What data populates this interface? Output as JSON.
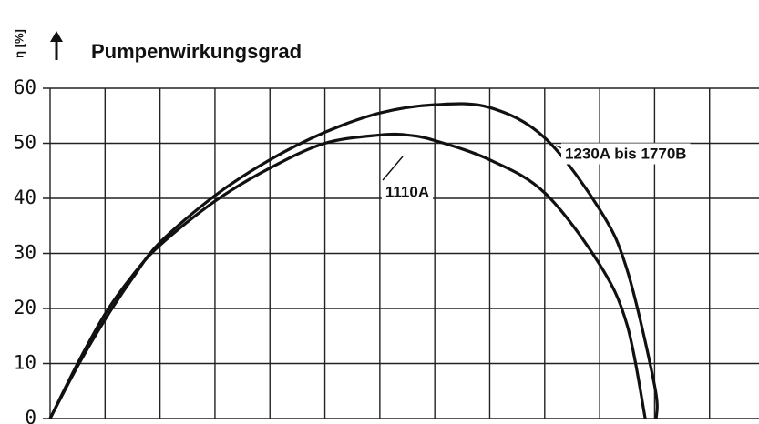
{
  "chart_data": {
    "type": "line",
    "title": "Pumpenwirkungsgrad",
    "y_label": "η [%]",
    "xlim": [
      0,
      12.9
    ],
    "xticks": [
      0,
      1,
      2,
      3,
      4,
      5,
      6,
      7,
      8,
      9,
      10,
      11,
      12
    ],
    "ylim": [
      0,
      60
    ],
    "yticks": [
      0,
      10,
      20,
      30,
      40,
      50,
      60
    ],
    "grid": true,
    "series": [
      {
        "name": "1230A bis 1770B",
        "color": "#111111",
        "x": [
          0,
          0.5,
          1,
          1.5,
          2,
          3,
          4,
          5,
          6,
          7,
          8,
          9,
          10,
          10.5,
          11,
          11.03
        ],
        "values": [
          0,
          9.5,
          18,
          25.5,
          32,
          40.5,
          47,
          52,
          55.5,
          57,
          56.5,
          51,
          38,
          27,
          6,
          0
        ]
      },
      {
        "name": "1110A",
        "color": "#111111",
        "x": [
          0,
          0.5,
          1,
          1.5,
          2,
          3,
          4,
          5,
          6,
          6.5,
          7,
          8,
          9,
          10,
          10.5,
          10.83
        ],
        "values": [
          0,
          10,
          19,
          26,
          31.5,
          39.5,
          45.5,
          50,
          51.5,
          51.5,
          50.5,
          47,
          41,
          28,
          17,
          0
        ]
      }
    ]
  }
}
